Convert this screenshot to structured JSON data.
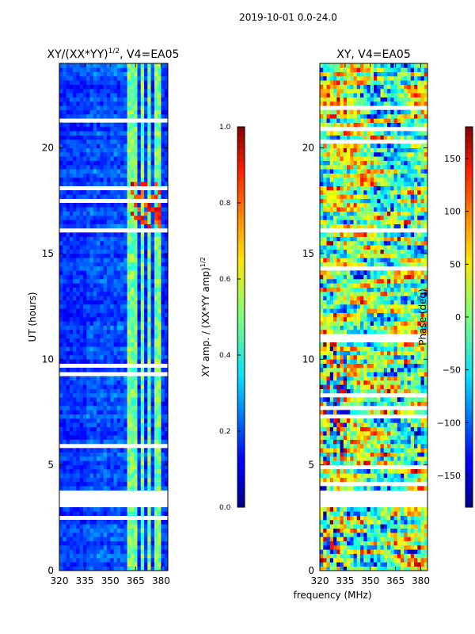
{
  "suptitle": "2019-10-01 0.0-24.0",
  "shared_xlabel": "frequency (MHz)",
  "chart_data": [
    {
      "type": "heatmap",
      "title_main": "XY/(XX*YY)",
      "title_sup": "1/2",
      "title_tail": ", V4=EA05",
      "xlabel": "",
      "ylabel": "UT (hours)",
      "xlim": [
        320,
        384
      ],
      "ylim": [
        0,
        24
      ],
      "xticks": [
        320,
        335,
        350,
        365,
        380
      ],
      "yticks": [
        0,
        5,
        10,
        15,
        20
      ],
      "gap_bands_ut": [
        [
          3.1,
          3.9
        ]
      ],
      "bright_channels_mhz": [
        362,
        365,
        369,
        373,
        378
      ],
      "colorbar": {
        "label_main": "XY amp. / (XX*YY amp)",
        "label_sup": "1/2",
        "range": [
          0.0,
          1.0
        ],
        "ticks": [
          "0.0",
          "0.2",
          "0.4",
          "0.6",
          "0.8",
          "1.0"
        ]
      }
    },
    {
      "type": "heatmap",
      "title_main": "XY, V4=EA05",
      "xlabel": "frequency (MHz)",
      "ylabel": "",
      "xlim": [
        320,
        384
      ],
      "ylim": [
        0,
        24
      ],
      "xticks": [
        320,
        335,
        350,
        365,
        380
      ],
      "yticks": [
        0,
        5,
        10,
        15,
        20
      ],
      "gap_bands_ut": [
        [
          3.1,
          3.9
        ]
      ],
      "colorbar": {
        "label": "Phase (deg)",
        "range": [
          -180,
          180
        ],
        "ticks": [
          "−150",
          "−100",
          "−50",
          "0",
          "50",
          "100",
          "150"
        ],
        "tick_values": [
          -150,
          -100,
          -50,
          0,
          50,
          100,
          150
        ]
      }
    }
  ]
}
